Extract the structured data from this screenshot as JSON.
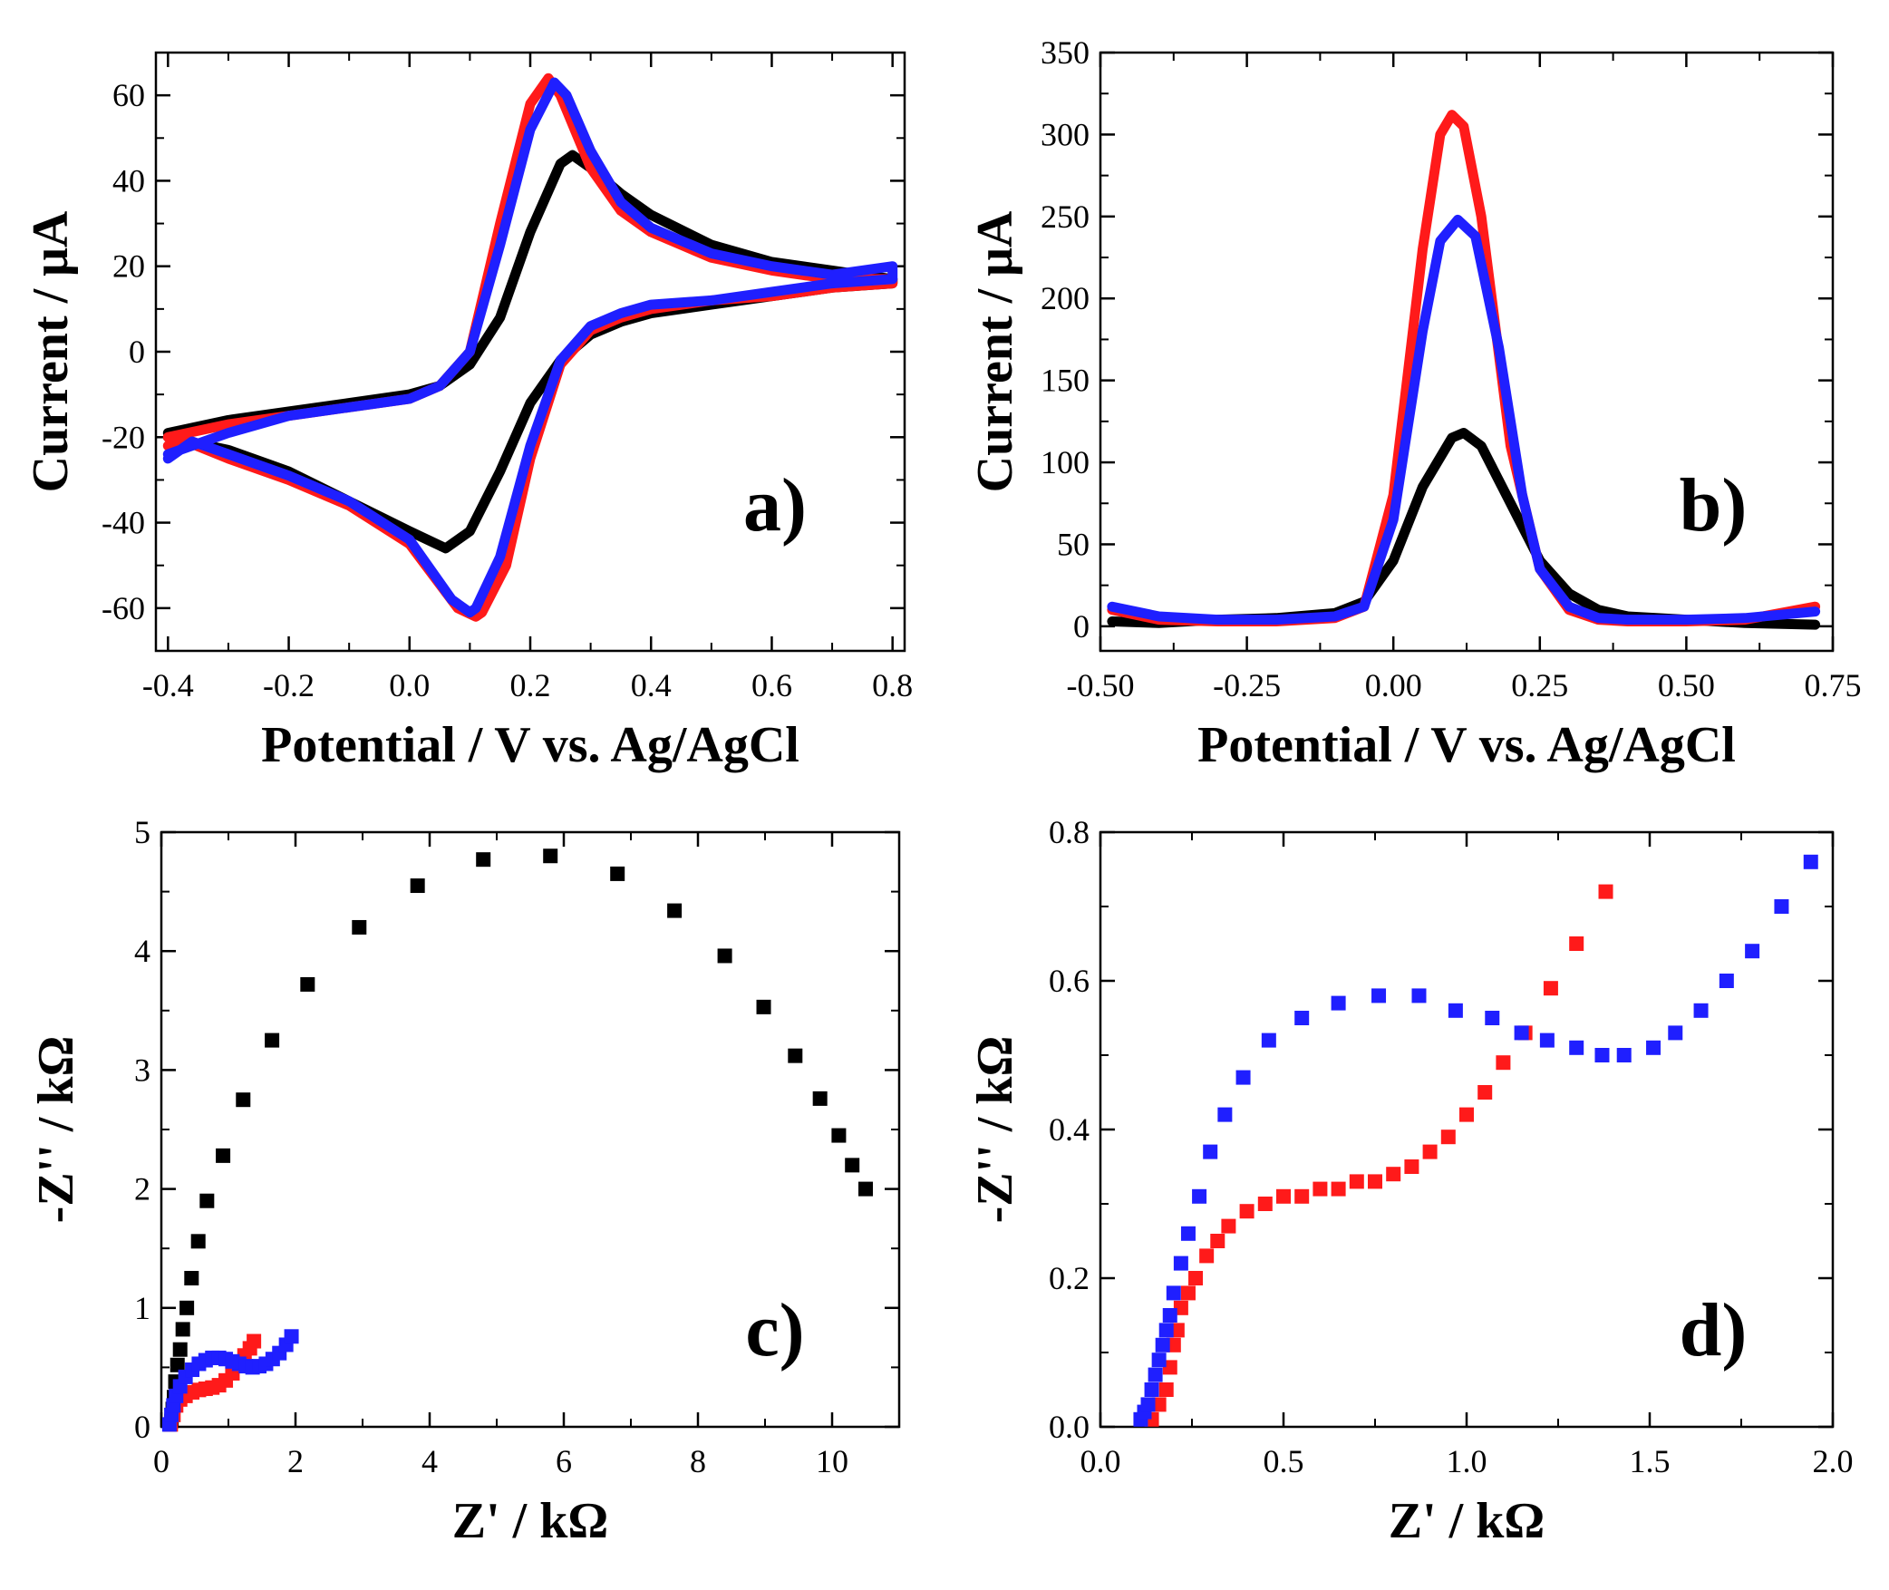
{
  "colors": {
    "black": "#000000",
    "red": "#ff1a1a",
    "blue": "#1f1fff"
  },
  "chart_data": [
    {
      "id": "a",
      "type": "line",
      "panel_label": "a)",
      "xlabel": "Potential / V vs. Ag/AgCl",
      "ylabel": "Current / μA",
      "xlim": [
        -0.42,
        0.82
      ],
      "ylim": [
        -70,
        70
      ],
      "xticks": [
        -0.4,
        -0.2,
        0.0,
        0.2,
        0.4,
        0.6,
        0.8
      ],
      "xtick_labels": [
        "-0.4",
        "-0.2",
        "0.0",
        "0.2",
        "0.4",
        "0.6",
        "0.8"
      ],
      "yticks": [
        -60,
        -40,
        -20,
        0,
        20,
        40,
        60
      ],
      "ytick_labels": [
        "-60",
        "-40",
        "-20",
        "0",
        "20",
        "40",
        "60"
      ],
      "series": [
        {
          "name": "black",
          "color": "#000000",
          "x": [
            -0.4,
            -0.3,
            -0.2,
            -0.1,
            0.0,
            0.05,
            0.1,
            0.15,
            0.2,
            0.25,
            0.27,
            0.3,
            0.35,
            0.4,
            0.5,
            0.6,
            0.7,
            0.8,
            0.8,
            0.7,
            0.6,
            0.5,
            0.4,
            0.35,
            0.3,
            0.25,
            0.2,
            0.15,
            0.1,
            0.06,
            0.0,
            -0.1,
            -0.2,
            -0.3,
            -0.4
          ],
          "y": [
            -19,
            -16,
            -14,
            -12,
            -10,
            -8,
            -3,
            8,
            28,
            44,
            46,
            43,
            37,
            32,
            25,
            21,
            19,
            17,
            16,
            15,
            13,
            11,
            9,
            7,
            4,
            -2,
            -12,
            -28,
            -42,
            -46,
            -42,
            -35,
            -28,
            -23,
            -20
          ]
        },
        {
          "name": "red",
          "color": "#ff1a1a",
          "x": [
            -0.4,
            -0.3,
            -0.2,
            -0.1,
            0.0,
            0.05,
            0.1,
            0.15,
            0.2,
            0.23,
            0.25,
            0.3,
            0.35,
            0.4,
            0.5,
            0.6,
            0.7,
            0.8,
            0.8,
            0.7,
            0.6,
            0.5,
            0.4,
            0.35,
            0.3,
            0.25,
            0.2,
            0.16,
            0.12,
            0.11,
            0.08,
            0.0,
            -0.1,
            -0.2,
            -0.3,
            -0.37,
            -0.4
          ],
          "y": [
            -20,
            -17,
            -15,
            -13,
            -11,
            -8,
            0,
            30,
            58,
            64,
            60,
            43,
            33,
            28,
            22,
            19,
            17,
            17,
            16,
            15,
            13,
            12,
            10,
            8,
            5,
            -3,
            -25,
            -50,
            -61,
            -62,
            -60,
            -45,
            -36,
            -30,
            -25,
            -21,
            -22
          ]
        },
        {
          "name": "blue",
          "color": "#1f1fff",
          "x": [
            -0.4,
            -0.3,
            -0.2,
            -0.1,
            0.0,
            0.05,
            0.1,
            0.15,
            0.2,
            0.24,
            0.26,
            0.3,
            0.35,
            0.4,
            0.5,
            0.6,
            0.7,
            0.8,
            0.8,
            0.7,
            0.6,
            0.5,
            0.4,
            0.35,
            0.3,
            0.25,
            0.2,
            0.15,
            0.11,
            0.1,
            0.07,
            0.0,
            -0.1,
            -0.2,
            -0.3,
            -0.36,
            -0.4
          ],
          "y": [
            -24,
            -19,
            -15,
            -13,
            -11,
            -8,
            0,
            25,
            52,
            63,
            60,
            47,
            35,
            29,
            23,
            20,
            18,
            20,
            17,
            16,
            14,
            12,
            11,
            9,
            6,
            -2,
            -22,
            -48,
            -60,
            -61,
            -58,
            -44,
            -35,
            -29,
            -24,
            -21,
            -25
          ]
        }
      ]
    },
    {
      "id": "b",
      "type": "line",
      "panel_label": "b)",
      "xlabel": "Potential / V vs. Ag/AgCl",
      "ylabel": "Current / μA",
      "xlim": [
        -0.5,
        0.75
      ],
      "ylim": [
        -15,
        350
      ],
      "xticks": [
        -0.5,
        -0.25,
        0.0,
        0.25,
        0.5,
        0.75
      ],
      "xtick_labels": [
        "-0.50",
        "-0.25",
        "0.00",
        "0.25",
        "0.50",
        "0.75"
      ],
      "yticks": [
        0,
        50,
        100,
        150,
        200,
        250,
        300,
        350
      ],
      "ytick_labels": [
        "0",
        "50",
        "100",
        "150",
        "200",
        "250",
        "300",
        "350"
      ],
      "series": [
        {
          "name": "black",
          "color": "#000000",
          "x": [
            -0.48,
            -0.4,
            -0.3,
            -0.2,
            -0.1,
            -0.05,
            0.0,
            0.05,
            0.1,
            0.12,
            0.15,
            0.2,
            0.25,
            0.3,
            0.35,
            0.4,
            0.5,
            0.6,
            0.72
          ],
          "y": [
            3,
            2,
            4,
            5,
            8,
            15,
            40,
            85,
            115,
            118,
            110,
            75,
            40,
            20,
            10,
            6,
            4,
            2,
            1
          ]
        },
        {
          "name": "red",
          "color": "#ff1a1a",
          "x": [
            -0.48,
            -0.4,
            -0.3,
            -0.2,
            -0.1,
            -0.05,
            0.0,
            0.05,
            0.08,
            0.1,
            0.12,
            0.15,
            0.2,
            0.25,
            0.3,
            0.35,
            0.4,
            0.5,
            0.6,
            0.72
          ],
          "y": [
            10,
            4,
            3,
            3,
            5,
            12,
            80,
            230,
            300,
            312,
            305,
            250,
            110,
            35,
            10,
            4,
            3,
            3,
            4,
            12
          ]
        },
        {
          "name": "blue",
          "color": "#1f1fff",
          "x": [
            -0.48,
            -0.4,
            -0.3,
            -0.2,
            -0.1,
            -0.05,
            0.0,
            0.05,
            0.08,
            0.11,
            0.14,
            0.18,
            0.22,
            0.25,
            0.3,
            0.35,
            0.4,
            0.5,
            0.6,
            0.72
          ],
          "y": [
            12,
            6,
            4,
            4,
            6,
            12,
            65,
            180,
            235,
            248,
            238,
            170,
            80,
            35,
            12,
            5,
            4,
            4,
            5,
            9
          ]
        }
      ]
    },
    {
      "id": "c",
      "type": "scatter",
      "panel_label": "c)",
      "xlabel": "Z' / kΩ",
      "ylabel": "-Z'' / kΩ",
      "xlim": [
        0,
        11
      ],
      "ylim": [
        0,
        5
      ],
      "xticks": [
        0,
        2,
        4,
        6,
        8,
        10
      ],
      "xtick_labels": [
        "0",
        "2",
        "4",
        "6",
        "8",
        "10"
      ],
      "yticks": [
        0,
        1,
        2,
        3,
        4,
        5
      ],
      "ytick_labels": [
        "0",
        "1",
        "2",
        "3",
        "4",
        "5"
      ],
      "series": [
        {
          "name": "black",
          "color": "#000000",
          "x": [
            0.15,
            0.17,
            0.19,
            0.21,
            0.24,
            0.28,
            0.32,
            0.38,
            0.45,
            0.55,
            0.68,
            0.92,
            1.22,
            1.65,
            2.18,
            2.95,
            3.82,
            4.8,
            5.8,
            6.8,
            7.65,
            8.4,
            8.98,
            9.45,
            9.82,
            10.1,
            10.3,
            10.5
          ],
          "y": [
            0.05,
            0.15,
            0.25,
            0.38,
            0.52,
            0.65,
            0.82,
            1.0,
            1.25,
            1.56,
            1.9,
            2.28,
            2.75,
            3.25,
            3.72,
            4.2,
            4.55,
            4.77,
            4.8,
            4.65,
            4.34,
            3.96,
            3.53,
            3.12,
            2.76,
            2.45,
            2.2,
            2.0
          ]
        },
        {
          "name": "red",
          "color": "#ff1a1a",
          "x": [
            0.14,
            0.18,
            0.22,
            0.28,
            0.36,
            0.46,
            0.56,
            0.66,
            0.76,
            0.86,
            0.96,
            1.06,
            1.16,
            1.24,
            1.32,
            1.38
          ],
          "y": [
            0.02,
            0.1,
            0.18,
            0.23,
            0.26,
            0.29,
            0.31,
            0.32,
            0.33,
            0.35,
            0.39,
            0.45,
            0.53,
            0.6,
            0.66,
            0.72
          ]
        },
        {
          "name": "blue",
          "color": "#1f1fff",
          "x": [
            0.12,
            0.15,
            0.18,
            0.22,
            0.28,
            0.36,
            0.46,
            0.56,
            0.66,
            0.76,
            0.86,
            0.96,
            1.06,
            1.16,
            1.26,
            1.36,
            1.46,
            1.56,
            1.66,
            1.76,
            1.86,
            1.94
          ],
          "y": [
            0.02,
            0.1,
            0.18,
            0.26,
            0.34,
            0.42,
            0.48,
            0.53,
            0.56,
            0.58,
            0.58,
            0.57,
            0.55,
            0.53,
            0.51,
            0.5,
            0.51,
            0.53,
            0.57,
            0.62,
            0.69,
            0.76
          ]
        }
      ]
    },
    {
      "id": "d",
      "type": "scatter",
      "panel_label": "d)",
      "xlabel": "Z' / kΩ",
      "ylabel": "-Z'' / kΩ",
      "xlim": [
        0,
        2.0
      ],
      "ylim": [
        0,
        0.8
      ],
      "xticks": [
        0.0,
        0.5,
        1.0,
        1.5,
        2.0
      ],
      "xtick_labels": [
        "0.0",
        "0.5",
        "1.0",
        "1.5",
        "2.0"
      ],
      "yticks": [
        0.0,
        0.2,
        0.4,
        0.6,
        0.8
      ],
      "ytick_labels": [
        "0.0",
        "0.2",
        "0.4",
        "0.6",
        "0.8"
      ],
      "series": [
        {
          "name": "red",
          "color": "#ff1a1a",
          "x": [
            0.14,
            0.16,
            0.18,
            0.19,
            0.2,
            0.21,
            0.22,
            0.24,
            0.26,
            0.29,
            0.32,
            0.35,
            0.4,
            0.45,
            0.5,
            0.55,
            0.6,
            0.65,
            0.7,
            0.75,
            0.8,
            0.85,
            0.9,
            0.95,
            1.0,
            1.05,
            1.1,
            1.16,
            1.23,
            1.3,
            1.38
          ],
          "y": [
            0.01,
            0.03,
            0.05,
            0.08,
            0.11,
            0.13,
            0.16,
            0.18,
            0.2,
            0.23,
            0.25,
            0.27,
            0.29,
            0.3,
            0.31,
            0.31,
            0.32,
            0.32,
            0.33,
            0.33,
            0.34,
            0.35,
            0.37,
            0.39,
            0.42,
            0.45,
            0.49,
            0.53,
            0.59,
            0.65,
            0.72
          ]
        },
        {
          "name": "blue",
          "color": "#1f1fff",
          "x": [
            0.11,
            0.12,
            0.13,
            0.14,
            0.15,
            0.16,
            0.17,
            0.18,
            0.19,
            0.2,
            0.22,
            0.24,
            0.27,
            0.3,
            0.34,
            0.39,
            0.46,
            0.55,
            0.65,
            0.76,
            0.87,
            0.97,
            1.07,
            1.15,
            1.22,
            1.3,
            1.37,
            1.43,
            1.51,
            1.57,
            1.64,
            1.71,
            1.78,
            1.86,
            1.94
          ],
          "y": [
            0.01,
            0.02,
            0.03,
            0.05,
            0.07,
            0.09,
            0.11,
            0.13,
            0.15,
            0.18,
            0.22,
            0.26,
            0.31,
            0.37,
            0.42,
            0.47,
            0.52,
            0.55,
            0.57,
            0.58,
            0.58,
            0.56,
            0.55,
            0.53,
            0.52,
            0.51,
            0.5,
            0.5,
            0.51,
            0.53,
            0.56,
            0.6,
            0.64,
            0.7,
            0.76
          ]
        }
      ]
    }
  ]
}
